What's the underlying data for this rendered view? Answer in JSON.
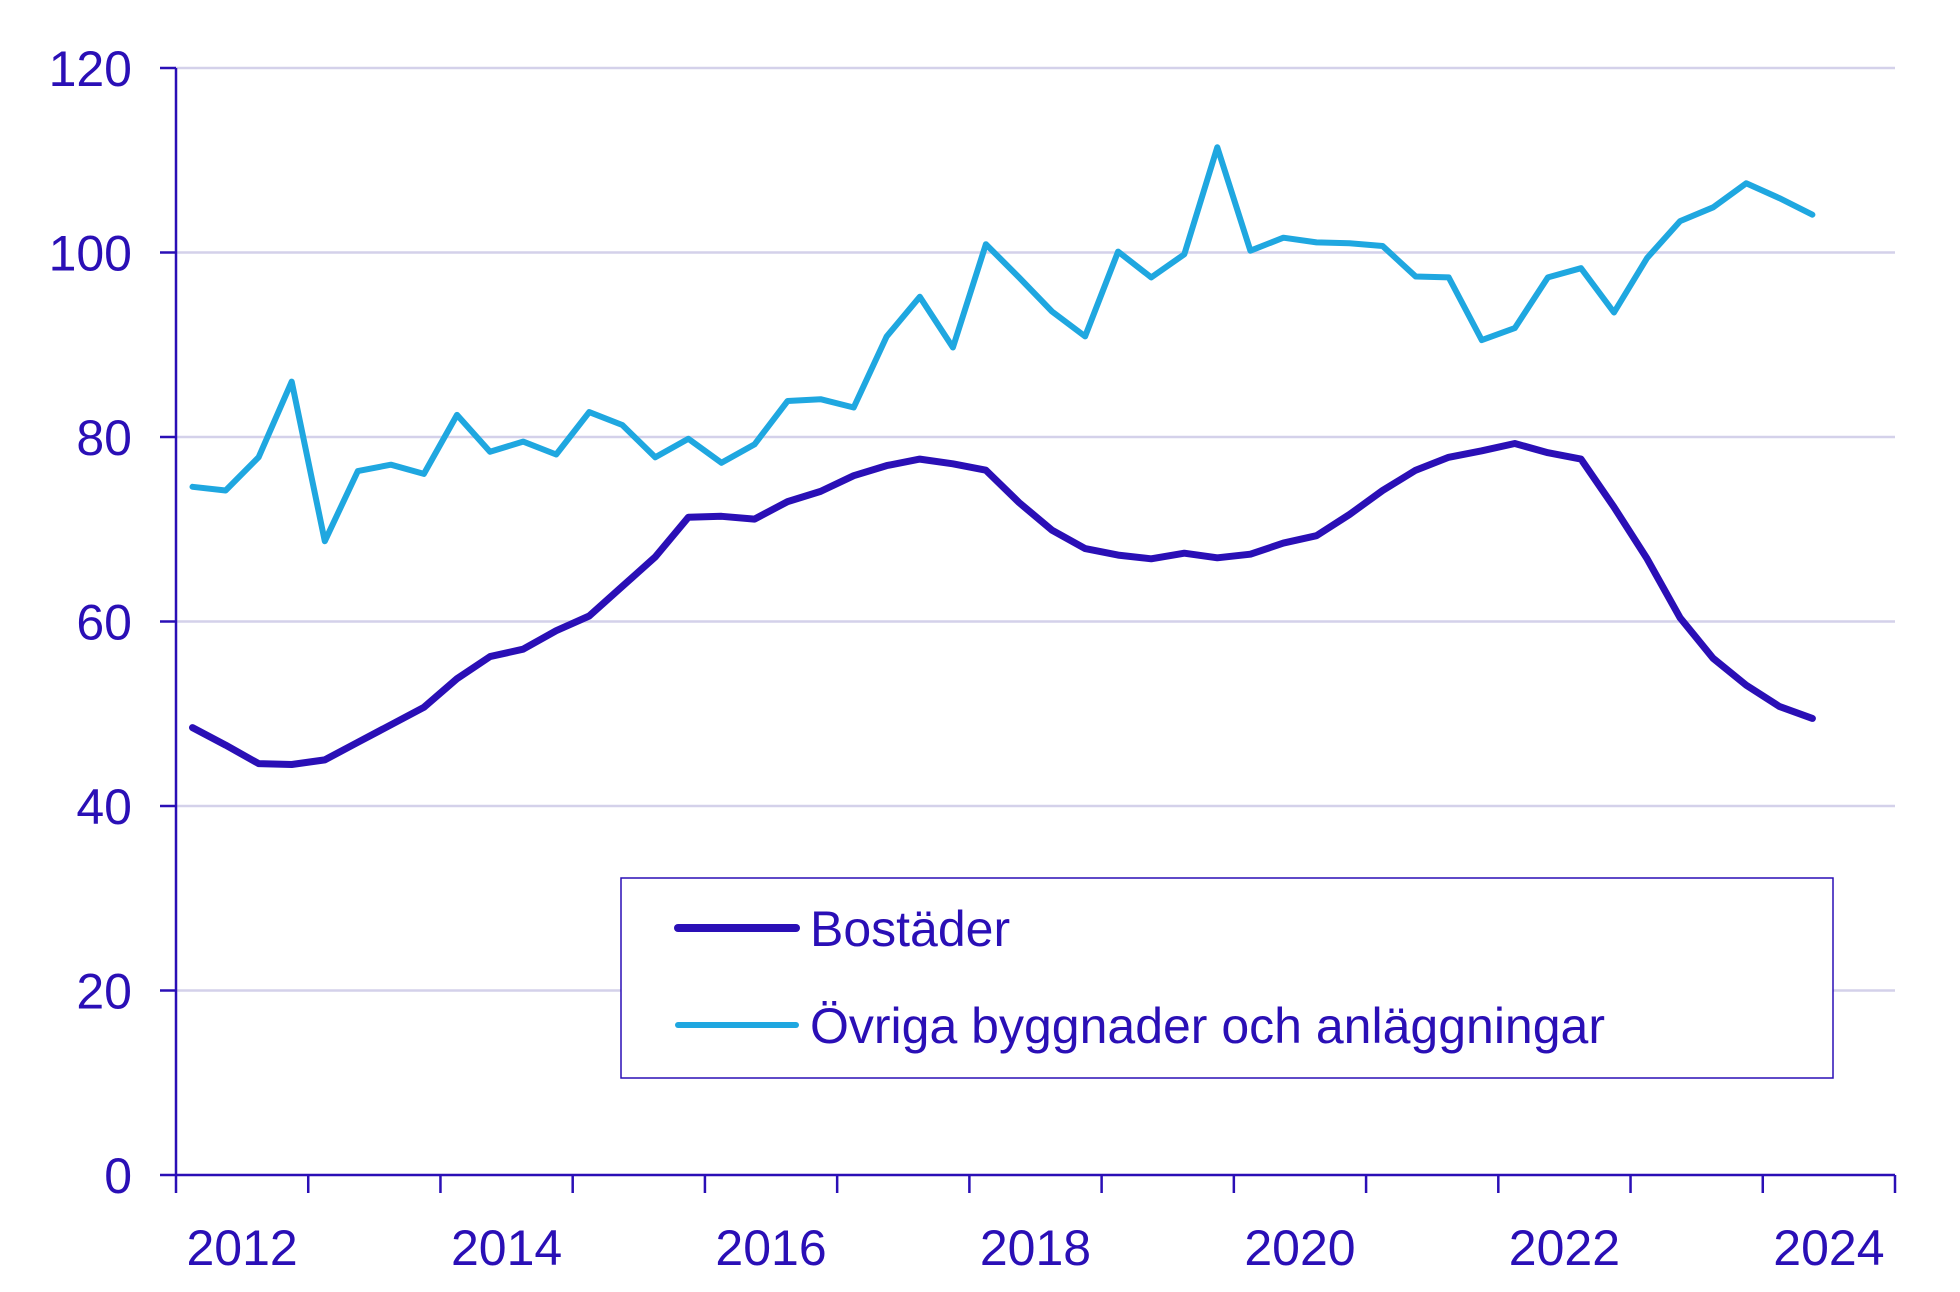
{
  "chart_data": {
    "type": "line",
    "title": "",
    "xlabel": "",
    "ylabel": "",
    "ylim": [
      0,
      120
    ],
    "yticks": [
      0,
      20,
      40,
      60,
      80,
      100,
      120
    ],
    "xlim": [
      2011,
      2024
    ],
    "xticks": [
      "2012",
      "2014",
      "2016",
      "2018",
      "2020",
      "2022",
      "2024"
    ],
    "grid": true,
    "legend_position": "lower-right",
    "x": [
      2011.125,
      2011.375,
      2011.625,
      2011.875,
      2012.125,
      2012.375,
      2012.625,
      2012.875,
      2013.125,
      2013.375,
      2013.625,
      2013.875,
      2014.125,
      2014.375,
      2014.625,
      2014.875,
      2015.125,
      2015.375,
      2015.625,
      2015.875,
      2016.125,
      2016.375,
      2016.625,
      2016.875,
      2017.125,
      2017.375,
      2017.625,
      2017.875,
      2018.125,
      2018.375,
      2018.625,
      2018.875,
      2019.125,
      2019.375,
      2019.625,
      2019.875,
      2020.125,
      2020.375,
      2020.625,
      2020.875,
      2021.125,
      2021.375,
      2021.625,
      2021.875,
      2022.125,
      2022.375,
      2022.625,
      2022.875,
      2023.125,
      2023.375
    ],
    "series": [
      {
        "name": "Bostäder",
        "color": "#2a0fb6",
        "values": [
          48.5,
          46.6,
          44.6,
          44.5,
          45.0,
          46.9,
          48.8,
          50.7,
          53.8,
          56.2,
          57.0,
          59.0,
          60.6,
          63.8,
          67.0,
          71.3,
          71.4,
          71.1,
          73.0,
          74.1,
          75.8,
          76.9,
          77.6,
          77.1,
          76.4,
          72.9,
          69.9,
          67.9,
          67.2,
          66.8,
          67.4,
          66.9,
          67.3,
          68.5,
          69.3,
          71.6,
          74.2,
          76.4,
          77.8,
          78.5,
          79.3,
          78.3,
          77.6,
          72.4,
          66.8,
          60.4,
          56.0,
          53.1,
          50.8,
          49.5
        ]
      },
      {
        "name": "Övriga byggnader och anläggningar",
        "color": "#1fa7e0",
        "values": [
          74.6,
          74.2,
          77.8,
          86.0,
          68.7,
          76.3,
          77.0,
          76.0,
          82.4,
          78.4,
          79.5,
          78.1,
          82.7,
          81.3,
          77.8,
          79.8,
          77.2,
          79.2,
          83.9,
          84.1,
          83.2,
          90.9,
          95.2,
          89.7,
          100.9,
          97.3,
          93.6,
          90.9,
          100.1,
          97.3,
          99.8,
          111.4,
          100.2,
          101.6,
          101.1,
          101.0,
          100.7,
          97.4,
          97.3,
          90.5,
          91.8,
          97.3,
          98.3,
          93.5,
          99.4,
          103.4,
          104.9,
          107.5,
          105.9,
          104.1
        ]
      }
    ]
  },
  "colors": {
    "axis": "#2a0fb6",
    "grid": "#d4d1ea",
    "text": "#2a0fb6",
    "background": "#ffffff"
  }
}
